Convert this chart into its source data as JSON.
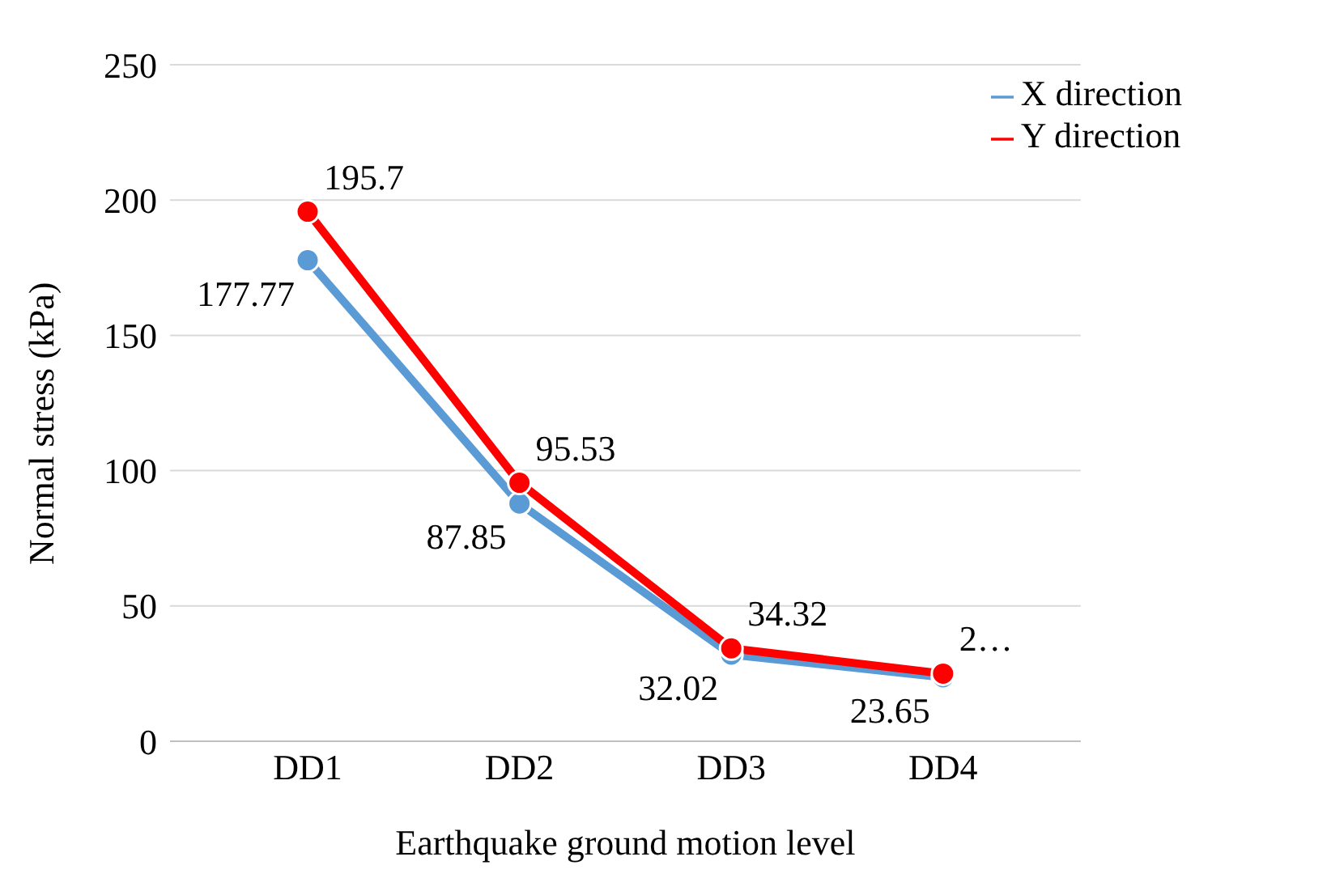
{
  "chart_data": {
    "type": "line",
    "xlabel": "Earthquake ground motion level",
    "ylabel": "Normal stress (kPa)",
    "categories": [
      "DD1",
      "DD2",
      "DD3",
      "DD4"
    ],
    "series": [
      {
        "name": "X direction",
        "color": "#5b9bd5",
        "values": [
          177.77,
          87.85,
          32.02,
          23.65
        ],
        "value_labels": [
          "177.77",
          "87.85",
          "32.02",
          "23.65"
        ]
      },
      {
        "name": "Y direction",
        "color": "#ff0000",
        "values": [
          195.7,
          95.53,
          34.32,
          25
        ],
        "value_labels": [
          "195.7",
          "95.53",
          "34.32",
          "2…"
        ]
      }
    ],
    "ylim": [
      0,
      250
    ],
    "yticks": [
      0,
      50,
      100,
      150,
      200,
      250
    ],
    "grid": "y",
    "legend": "top right",
    "marker": "circle",
    "line_style": "solid"
  }
}
